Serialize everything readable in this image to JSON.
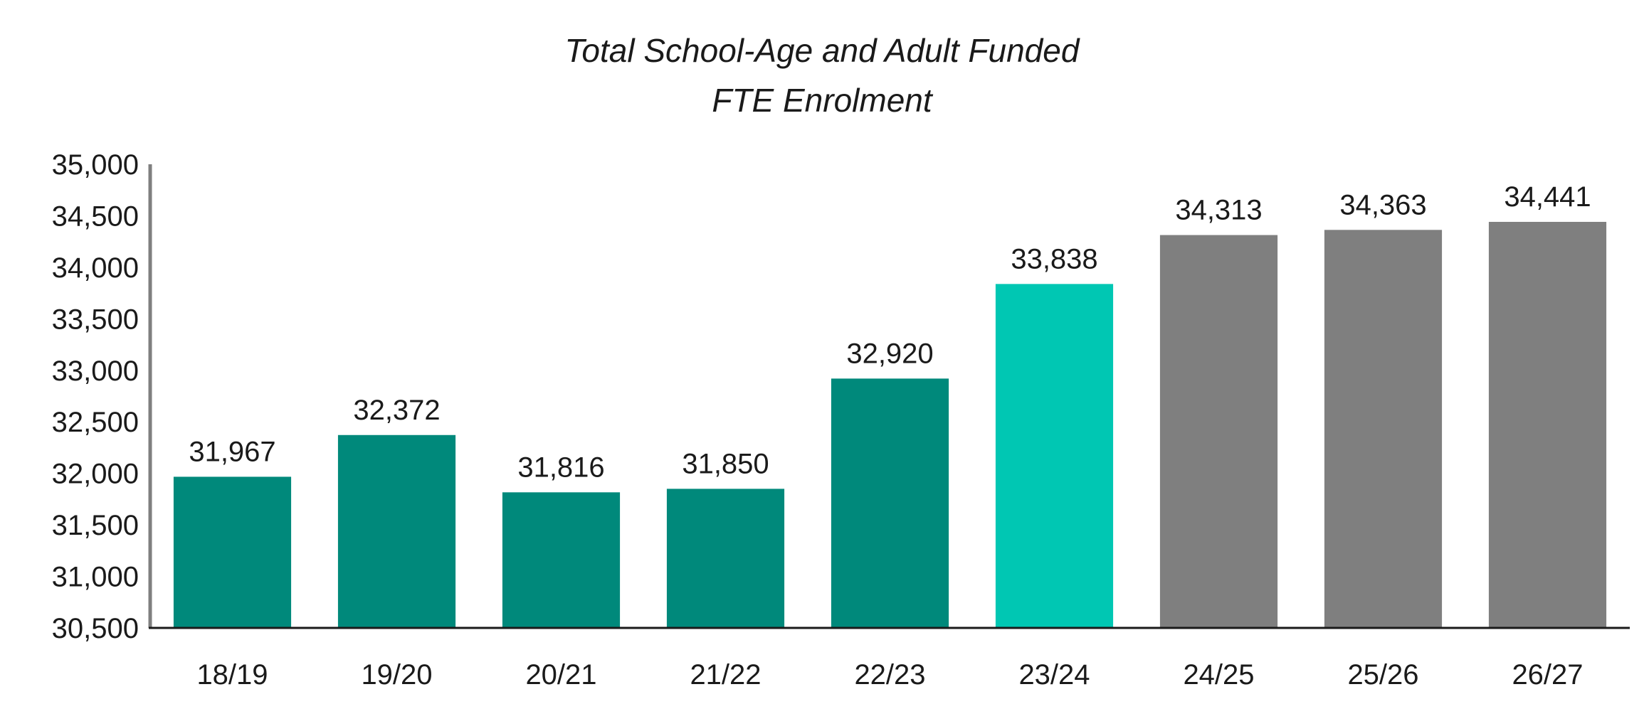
{
  "chart_data": {
    "type": "bar",
    "title_lines": [
      "Total School-Age and Adult Funded",
      "FTE Enrolment"
    ],
    "xlabel": "",
    "ylabel": "",
    "categories": [
      "18/19",
      "19/20",
      "20/21",
      "21/22",
      "22/23",
      "23/24",
      "24/25",
      "25/26",
      "26/27"
    ],
    "values": [
      31967,
      32372,
      31816,
      31850,
      32920,
      33838,
      34313,
      34363,
      34441
    ],
    "value_labels": [
      "31,967",
      "32,372",
      "31,816",
      "31,850",
      "32,920",
      "33,838",
      "34,313",
      "34,363",
      "34,441"
    ],
    "bar_colors": [
      "#00897B",
      "#00897B",
      "#00897B",
      "#00897B",
      "#00897B",
      "#00C7B3",
      "#7F7F7F",
      "#7F7F7F",
      "#7F7F7F"
    ],
    "ylim": [
      30500,
      35000
    ],
    "yticks": [
      30500,
      31000,
      31500,
      32000,
      32500,
      33000,
      33500,
      34000,
      34500,
      35000
    ],
    "ytick_labels": [
      "30,500",
      "31,000",
      "31,500",
      "32,000",
      "32,500",
      "33,000",
      "33,500",
      "34,000",
      "34,500",
      "35,000"
    ],
    "grid": false,
    "legend": "none"
  },
  "colors": {
    "actual": "#00897B",
    "current": "#00C7B3",
    "projected": "#7F7F7F",
    "axis": "#7F7F7F",
    "baseline": "#1a1a1a"
  }
}
